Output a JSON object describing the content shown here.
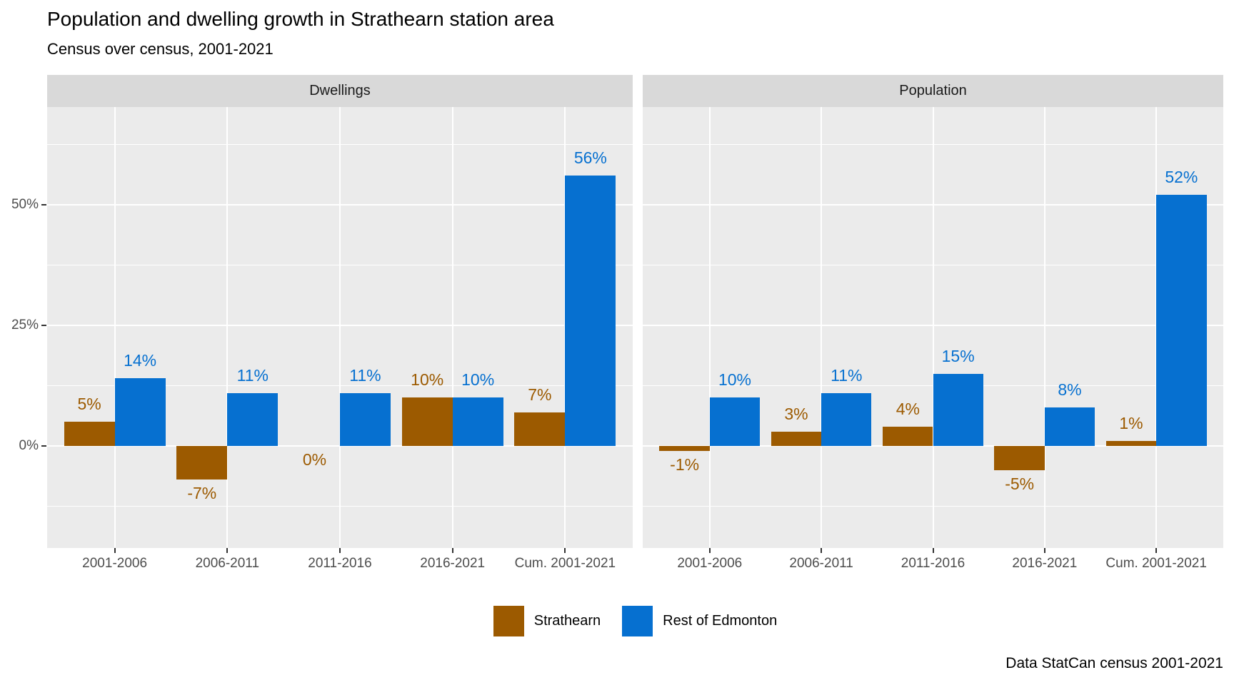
{
  "title": "Population and dwelling growth in Strathearn station area",
  "subtitle": "Census over census, 2001-2021",
  "caption": "Data StatCan census 2001-2021",
  "y_axis": {
    "tick_labels": [
      "0%",
      "25%",
      "50%"
    ],
    "tick_values": [
      0,
      25,
      50
    ]
  },
  "legend": {
    "position": "bottom",
    "items": [
      {
        "label": "Strathearn",
        "color": "#9C5A00"
      },
      {
        "label": "Rest of Edmonton",
        "color": "#0670D0"
      }
    ]
  },
  "colors": {
    "strathearn_brown": "#9C5A00",
    "edmonton_blue": "#0670D0",
    "panel_background": "#EBEBEB",
    "strip_background": "#D9D9D9",
    "gridline": "#FFFFFF",
    "axis_text": "#4D4D4D",
    "tick_mark": "#333333",
    "strip_text": "#1A1A1A"
  },
  "chart_data": [
    {
      "type": "bar",
      "facet": "Dwellings",
      "categories": [
        "2001-2006",
        "2006-2011",
        "2011-2016",
        "2016-2021",
        "Cum. 2001-2021"
      ],
      "series": [
        {
          "name": "Strathearn",
          "color": "#9C5A00",
          "values": [
            5,
            -7,
            0,
            10,
            7
          ],
          "labels": [
            "5%",
            "-7%",
            "0%",
            "10%",
            "7%"
          ]
        },
        {
          "name": "Rest of Edmonton",
          "color": "#0670D0",
          "values": [
            14,
            11,
            11,
            10,
            56
          ],
          "labels": [
            "14%",
            "11%",
            "11%",
            "10%",
            "56%"
          ]
        }
      ],
      "xlabel": "",
      "ylabel": "",
      "ylim": [
        -21,
        70
      ],
      "grid": true,
      "gridlines_major_pct": [
        0,
        25,
        50
      ],
      "gridlines_minor_pct": [
        -12.5,
        12.5,
        37.5,
        62.5
      ]
    },
    {
      "type": "bar",
      "facet": "Population",
      "categories": [
        "2001-2006",
        "2006-2011",
        "2011-2016",
        "2016-2021",
        "Cum. 2001-2021"
      ],
      "series": [
        {
          "name": "Strathearn",
          "color": "#9C5A00",
          "values": [
            -1,
            3,
            4,
            -5,
            1
          ],
          "labels": [
            "-1%",
            "3%",
            "4%",
            "-5%",
            "1%"
          ]
        },
        {
          "name": "Rest of Edmonton",
          "color": "#0670D0",
          "values": [
            10,
            11,
            15,
            8,
            52
          ],
          "labels": [
            "10%",
            "11%",
            "15%",
            "8%",
            "52%"
          ]
        }
      ],
      "xlabel": "",
      "ylabel": "",
      "ylim": [
        -21,
        70
      ],
      "grid": true,
      "gridlines_major_pct": [
        0,
        25,
        50
      ],
      "gridlines_minor_pct": [
        -12.5,
        12.5,
        37.5,
        62.5
      ]
    }
  ]
}
